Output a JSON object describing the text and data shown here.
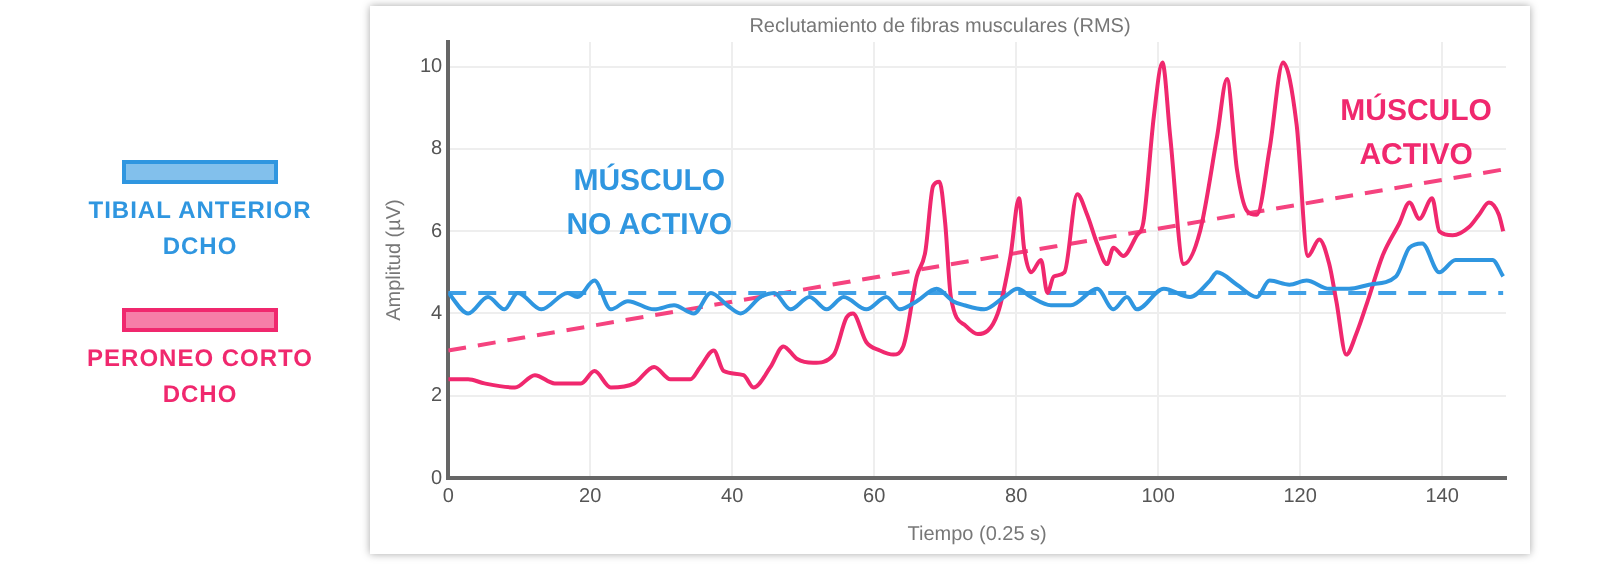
{
  "chart_data": {
    "type": "line",
    "title": "Reclutamiento de fibras musculares (RMS)",
    "xlabel": "Tiempo (0.25 s)",
    "ylabel": "Amplitud (µV)",
    "xlim": [
      0,
      149
    ],
    "xticks": [
      0,
      20,
      40,
      60,
      80,
      100,
      120,
      140
    ],
    "ylim": [
      0,
      10.6
    ],
    "yticks": [
      0,
      2,
      4,
      6,
      8,
      10
    ],
    "grid": true,
    "legend": "left",
    "marker": "none",
    "annotations": [
      "MÚSCULO NO ACTIVO",
      "MÚSCULO ACTIVO"
    ],
    "series": [
      {
        "name": "TIBIAL ANTERIOR DCHO",
        "color": "#2f96e0",
        "x": [
          0,
          2.8,
          5.6,
          7.9,
          9.8,
          13.1,
          16.8,
          18.2,
          20.6,
          22.9,
          25.3,
          29,
          31.8,
          34.6,
          37,
          39.3,
          41.2,
          44,
          45.9,
          48.2,
          50.9,
          53.3,
          55.7,
          58.9,
          61.7,
          63.6,
          66,
          68.8,
          71.1,
          72.7,
          75.5,
          78.3,
          80.2,
          82.1,
          84.9,
          87.7,
          91.4,
          93.7,
          95.6,
          97,
          100.8,
          104.5,
          107.3,
          108.3,
          111.1,
          113.9,
          115.7,
          118.5,
          120.9,
          124.1,
          126.9,
          129.7,
          133.5,
          135.4,
          137.2,
          139.6,
          141.9,
          144.8,
          147.1,
          148.6
        ],
        "values": [
          4.5,
          4.0,
          4.4,
          4.1,
          4.5,
          4.1,
          4.5,
          4.4,
          4.8,
          4.1,
          4.3,
          4.1,
          4.2,
          4.0,
          4.5,
          4.2,
          4.0,
          4.4,
          4.5,
          4.1,
          4.4,
          4.1,
          4.4,
          4.1,
          4.4,
          4.1,
          4.3,
          4.6,
          4.3,
          4.2,
          4.1,
          4.4,
          4.6,
          4.4,
          4.2,
          4.2,
          4.6,
          4.1,
          4.4,
          4.1,
          4.6,
          4.4,
          4.8,
          5.0,
          4.7,
          4.4,
          4.8,
          4.7,
          4.8,
          4.6,
          4.6,
          4.7,
          4.9,
          5.6,
          5.7,
          5.0,
          5.3,
          5.3,
          5.3,
          4.9
        ]
      },
      {
        "name": "PERONEO CORTO DCHO",
        "color": "#f0286e",
        "x": [
          0,
          2.8,
          5.1,
          9.4,
          12.2,
          15,
          18.7,
          20.6,
          22.9,
          26.2,
          29,
          31.3,
          34.1,
          35.5,
          37.4,
          38.8,
          41.6,
          43,
          45.4,
          47.2,
          49.1,
          51.4,
          54.3,
          56.1,
          57,
          58.9,
          60.8,
          62.7,
          64.1,
          66,
          67.2,
          68.3,
          69.2,
          70,
          70.8,
          72.9,
          74.6,
          77.4,
          79.2,
          80.4,
          81.1,
          82.1,
          83.5,
          84.4,
          85.3,
          86.8,
          88.6,
          90,
          91.4,
          92.8,
          93.7,
          95.1,
          97,
          97.9,
          99.4,
          100.6,
          101.7,
          103.6,
          105.9,
          108.3,
          109.7,
          111.1,
          112.5,
          113.9,
          115.7,
          117.6,
          119.5,
          121.1,
          122.7,
          124.1,
          125.1,
          126.5,
          127.9,
          129.7,
          131.6,
          134,
          135.4,
          136.8,
          138.6,
          139.6,
          141.5,
          143.8,
          145.2,
          146.6,
          148,
          148.6
        ],
        "values": [
          2.4,
          2.4,
          2.3,
          2.2,
          2.5,
          2.3,
          2.3,
          2.6,
          2.2,
          2.3,
          2.7,
          2.4,
          2.4,
          2.7,
          3.1,
          2.6,
          2.5,
          2.2,
          2.7,
          3.2,
          2.9,
          2.8,
          3.0,
          3.9,
          4.0,
          3.3,
          3.1,
          3.0,
          3.2,
          4.9,
          5.5,
          7.1,
          7.2,
          6.2,
          4.4,
          3.7,
          3.5,
          4.0,
          5.4,
          6.8,
          5.6,
          5.0,
          5.3,
          4.5,
          4.9,
          5.0,
          6.9,
          6.4,
          5.7,
          5.2,
          5.6,
          5.4,
          5.9,
          6.2,
          8.8,
          10.1,
          8.3,
          5.2,
          6.0,
          8.3,
          9.7,
          7.5,
          6.5,
          6.4,
          8.0,
          10.1,
          8.6,
          5.4,
          5.8,
          5.2,
          4.3,
          3.0,
          3.5,
          4.4,
          5.4,
          6.2,
          6.7,
          6.3,
          6.8,
          6.0,
          5.9,
          6.1,
          6.4,
          6.7,
          6.4,
          6.0
        ]
      },
      {
        "color": "#3fa0e6",
        "line_style": "dashed",
        "x": [
          0,
          148.6
        ],
        "values": [
          4.5,
          4.5
        ]
      },
      {
        "color": "#f5437f",
        "line_style": "dashed",
        "x": [
          0,
          148.6
        ],
        "values": [
          3.1,
          7.5
        ]
      }
    ]
  }
}
